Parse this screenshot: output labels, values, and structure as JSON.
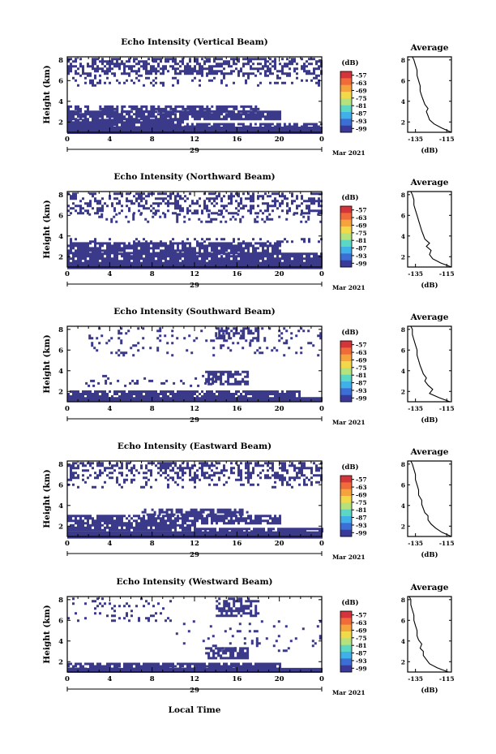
{
  "figure": {
    "x_axis_label": "Local Time",
    "date_day": "29",
    "date_month_year": "Mar 2021"
  },
  "colorbar": {
    "unit_label": "(dB)",
    "tick_labels": [
      "-57",
      "-63",
      "-69",
      "-75",
      "-81",
      "-87",
      "-93",
      "-99"
    ],
    "colors": [
      "#d4353b",
      "#f06a3a",
      "#f5a33c",
      "#f2d94a",
      "#b5e27c",
      "#5cd7c4",
      "#3fb0e8",
      "#3c6fd6",
      "#3b3a9a"
    ]
  },
  "colors": {
    "echo_fill": "#3b3a8a",
    "axis": "#000000",
    "background": "#ffffff"
  },
  "chart_data": [
    {
      "type": "heatmap",
      "title": "Echo Intensity (Vertical Beam)",
      "ylabel": "Height (km)",
      "x_ticks": [
        "0",
        "4",
        "8",
        "12",
        "16",
        "20",
        "0"
      ],
      "xlim": [
        0,
        24
      ],
      "y_ticks": [
        "2",
        "4",
        "6",
        "8"
      ],
      "ylim": [
        1,
        8.3
      ],
      "grid": false,
      "regions": [
        {
          "x": [
            0,
            24
          ],
          "y": [
            1.0,
            1.55
          ],
          "density": 1.0
        },
        {
          "x": [
            0,
            11
          ],
          "y": [
            1.55,
            2.3
          ],
          "density": 0.95
        },
        {
          "x": [
            11,
            24
          ],
          "y": [
            1.55,
            1.9
          ],
          "density": 0.8
        },
        {
          "x": [
            0,
            20
          ],
          "y": [
            2.3,
            3.1
          ],
          "density": 0.85
        },
        {
          "x": [
            0,
            2
          ],
          "y": [
            3.1,
            3.6
          ],
          "density": 0.6
        },
        {
          "x": [
            3,
            18
          ],
          "y": [
            3.0,
            3.6
          ],
          "density": 0.75
        },
        {
          "x": [
            0,
            24
          ],
          "y": [
            6.6,
            8.2
          ],
          "density": 0.55
        },
        {
          "x": [
            0,
            24
          ],
          "y": [
            5.6,
            6.6
          ],
          "density": 0.18
        }
      ],
      "average_profile": {
        "title": "Average",
        "xlabel": "(dB)",
        "x_ticks": [
          "-135",
          "-115"
        ],
        "xlim": [
          -140,
          -112
        ],
        "y_ticks": [
          "2",
          "4",
          "6",
          "8"
        ],
        "ylim": [
          1,
          8.3
        ],
        "x": [
          -112,
          -118,
          -123,
          -126,
          -127,
          -128,
          -127,
          -129,
          -130,
          -131,
          -132,
          -132,
          -133,
          -134,
          -134,
          -135,
          -136,
          -137
        ],
        "y": [
          1.0,
          1.4,
          1.8,
          2.2,
          2.6,
          3.0,
          3.3,
          3.7,
          4.1,
          4.5,
          5.0,
          5.5,
          6.0,
          6.5,
          7.0,
          7.5,
          8.0,
          8.3
        ]
      }
    },
    {
      "type": "heatmap",
      "title": "Echo Intensity (Northward Beam)",
      "ylabel": "Height (km)",
      "x_ticks": [
        "0",
        "4",
        "8",
        "12",
        "16",
        "20",
        "0"
      ],
      "xlim": [
        0,
        24
      ],
      "y_ticks": [
        "2",
        "4",
        "6",
        "8"
      ],
      "ylim": [
        1,
        8.3
      ],
      "grid": false,
      "regions": [
        {
          "x": [
            0,
            24
          ],
          "y": [
            1.0,
            1.5
          ],
          "density": 1.0
        },
        {
          "x": [
            0,
            24
          ],
          "y": [
            1.5,
            2.4
          ],
          "density": 0.9
        },
        {
          "x": [
            0,
            20
          ],
          "y": [
            2.4,
            3.4
          ],
          "density": 0.85
        },
        {
          "x": [
            0,
            24
          ],
          "y": [
            3.4,
            3.8
          ],
          "density": 0.2
        },
        {
          "x": [
            0,
            24
          ],
          "y": [
            6.2,
            8.2
          ],
          "density": 0.4
        },
        {
          "x": [
            2,
            24
          ],
          "y": [
            5.4,
            6.2
          ],
          "density": 0.2
        }
      ],
      "average_profile": {
        "title": "Average",
        "xlabel": "(dB)",
        "x_ticks": [
          "-135",
          "-115"
        ],
        "xlim": [
          -140,
          -112
        ],
        "y_ticks": [
          "2",
          "4",
          "6",
          "8"
        ],
        "ylim": [
          1,
          8.3
        ],
        "x": [
          -112,
          -119,
          -124,
          -126,
          -125,
          -128,
          -126,
          -129,
          -130,
          -131,
          -132,
          -133,
          -134,
          -135,
          -136,
          -136,
          -137,
          -138
        ],
        "y": [
          1.0,
          1.4,
          1.8,
          2.2,
          2.6,
          3.0,
          3.3,
          3.7,
          4.1,
          4.5,
          5.0,
          5.5,
          6.0,
          6.5,
          7.0,
          7.5,
          8.0,
          8.3
        ]
      }
    },
    {
      "type": "heatmap",
      "title": "Echo Intensity (Southward Beam)",
      "ylabel": "Height (km)",
      "x_ticks": [
        "0",
        "4",
        "8",
        "12",
        "16",
        "20",
        "0"
      ],
      "xlim": [
        0,
        24
      ],
      "y_ticks": [
        "2",
        "4",
        "6",
        "8"
      ],
      "ylim": [
        1,
        8.3
      ],
      "grid": false,
      "regions": [
        {
          "x": [
            0,
            24
          ],
          "y": [
            1.0,
            1.45
          ],
          "density": 1.0
        },
        {
          "x": [
            0,
            22
          ],
          "y": [
            1.45,
            2.1
          ],
          "density": 0.85
        },
        {
          "x": [
            13,
            17
          ],
          "y": [
            2.7,
            4.0
          ],
          "density": 0.7
        },
        {
          "x": [
            1,
            14
          ],
          "y": [
            2.6,
            3.6
          ],
          "density": 0.12
        },
        {
          "x": [
            14,
            18
          ],
          "y": [
            6.8,
            8.2
          ],
          "density": 0.55
        },
        {
          "x": [
            2,
            24
          ],
          "y": [
            5.5,
            8.2
          ],
          "density": 0.12
        }
      ],
      "average_profile": {
        "title": "Average",
        "xlabel": "(dB)",
        "x_ticks": [
          "-135",
          "-115"
        ],
        "xlim": [
          -140,
          -112
        ],
        "y_ticks": [
          "2",
          "4",
          "6",
          "8"
        ],
        "ylim": [
          1,
          8.3
        ],
        "x": [
          -113,
          -120,
          -126,
          -124,
          -127,
          -129,
          -128,
          -130,
          -131,
          -132,
          -133,
          -134,
          -134,
          -135,
          -136,
          -137,
          -137,
          -138
        ],
        "y": [
          1.0,
          1.4,
          1.8,
          2.2,
          2.6,
          3.0,
          3.3,
          3.7,
          4.1,
          4.5,
          5.0,
          5.5,
          6.0,
          6.5,
          7.0,
          7.5,
          8.0,
          8.3
        ]
      }
    },
    {
      "type": "heatmap",
      "title": "Echo Intensity (Eastward Beam)",
      "ylabel": "Height (km)",
      "x_ticks": [
        "0",
        "4",
        "8",
        "12",
        "16",
        "20",
        "0"
      ],
      "xlim": [
        0,
        24
      ],
      "y_ticks": [
        "2",
        "4",
        "6",
        "8"
      ],
      "ylim": [
        1,
        8.3
      ],
      "grid": false,
      "regions": [
        {
          "x": [
            0,
            24
          ],
          "y": [
            1.0,
            1.5
          ],
          "density": 1.0
        },
        {
          "x": [
            0,
            12
          ],
          "y": [
            1.5,
            2.2
          ],
          "density": 0.9
        },
        {
          "x": [
            12,
            24
          ],
          "y": [
            1.5,
            1.85
          ],
          "density": 0.8
        },
        {
          "x": [
            0,
            20
          ],
          "y": [
            2.2,
            3.1
          ],
          "density": 0.8
        },
        {
          "x": [
            7,
            17
          ],
          "y": [
            3.1,
            3.7
          ],
          "density": 0.7
        },
        {
          "x": [
            0,
            24
          ],
          "y": [
            6.6,
            8.2
          ],
          "density": 0.45
        },
        {
          "x": [
            0,
            24
          ],
          "y": [
            5.8,
            6.6
          ],
          "density": 0.2
        }
      ],
      "average_profile": {
        "title": "Average",
        "xlabel": "(dB)",
        "x_ticks": [
          "-135",
          "-115"
        ],
        "xlim": [
          -140,
          -112
        ],
        "y_ticks": [
          "2",
          "4",
          "6",
          "8"
        ],
        "ylim": [
          1,
          8.3
        ],
        "x": [
          -112,
          -118,
          -122,
          -125,
          -127,
          -127,
          -129,
          -130,
          -131,
          -131,
          -133,
          -133,
          -134,
          -135,
          -135,
          -136,
          -137,
          -138
        ],
        "y": [
          1.0,
          1.4,
          1.8,
          2.2,
          2.6,
          3.0,
          3.3,
          3.7,
          4.1,
          4.5,
          5.0,
          5.5,
          6.0,
          6.5,
          7.0,
          7.5,
          8.0,
          8.3
        ]
      }
    },
    {
      "type": "heatmap",
      "title": "Echo Intensity (Westward Beam)",
      "ylabel": "Height (km)",
      "x_ticks": [
        "0",
        "4",
        "8",
        "12",
        "16",
        "20",
        "0"
      ],
      "xlim": [
        0,
        24
      ],
      "y_ticks": [
        "2",
        "4",
        "6",
        "8"
      ],
      "ylim": [
        1,
        8.3
      ],
      "grid": false,
      "regions": [
        {
          "x": [
            0,
            24
          ],
          "y": [
            1.0,
            1.4
          ],
          "density": 1.0
        },
        {
          "x": [
            0,
            20
          ],
          "y": [
            1.4,
            1.9
          ],
          "density": 0.85
        },
        {
          "x": [
            13,
            17
          ],
          "y": [
            2.4,
            3.4
          ],
          "density": 0.7
        },
        {
          "x": [
            14,
            18
          ],
          "y": [
            6.5,
            8.2
          ],
          "density": 0.6
        },
        {
          "x": [
            0,
            10
          ],
          "y": [
            6.0,
            8.2
          ],
          "density": 0.15
        },
        {
          "x": [
            10,
            24
          ],
          "y": [
            3.0,
            6.0
          ],
          "density": 0.06
        }
      ],
      "average_profile": {
        "title": "Average",
        "xlabel": "(dB)",
        "x_ticks": [
          "-135",
          "-115"
        ],
        "xlim": [
          -140,
          -112
        ],
        "y_ticks": [
          "2",
          "4",
          "6",
          "8"
        ],
        "ylim": [
          1,
          8.3
        ],
        "x": [
          -114,
          -121,
          -126,
          -128,
          -130,
          -130,
          -132,
          -131,
          -133,
          -134,
          -134,
          -135,
          -136,
          -136,
          -137,
          -138,
          -138,
          -139
        ],
        "y": [
          1.0,
          1.4,
          1.8,
          2.2,
          2.6,
          3.0,
          3.3,
          3.7,
          4.1,
          4.5,
          5.0,
          5.5,
          6.0,
          6.5,
          7.0,
          7.5,
          8.0,
          8.3
        ]
      }
    }
  ]
}
